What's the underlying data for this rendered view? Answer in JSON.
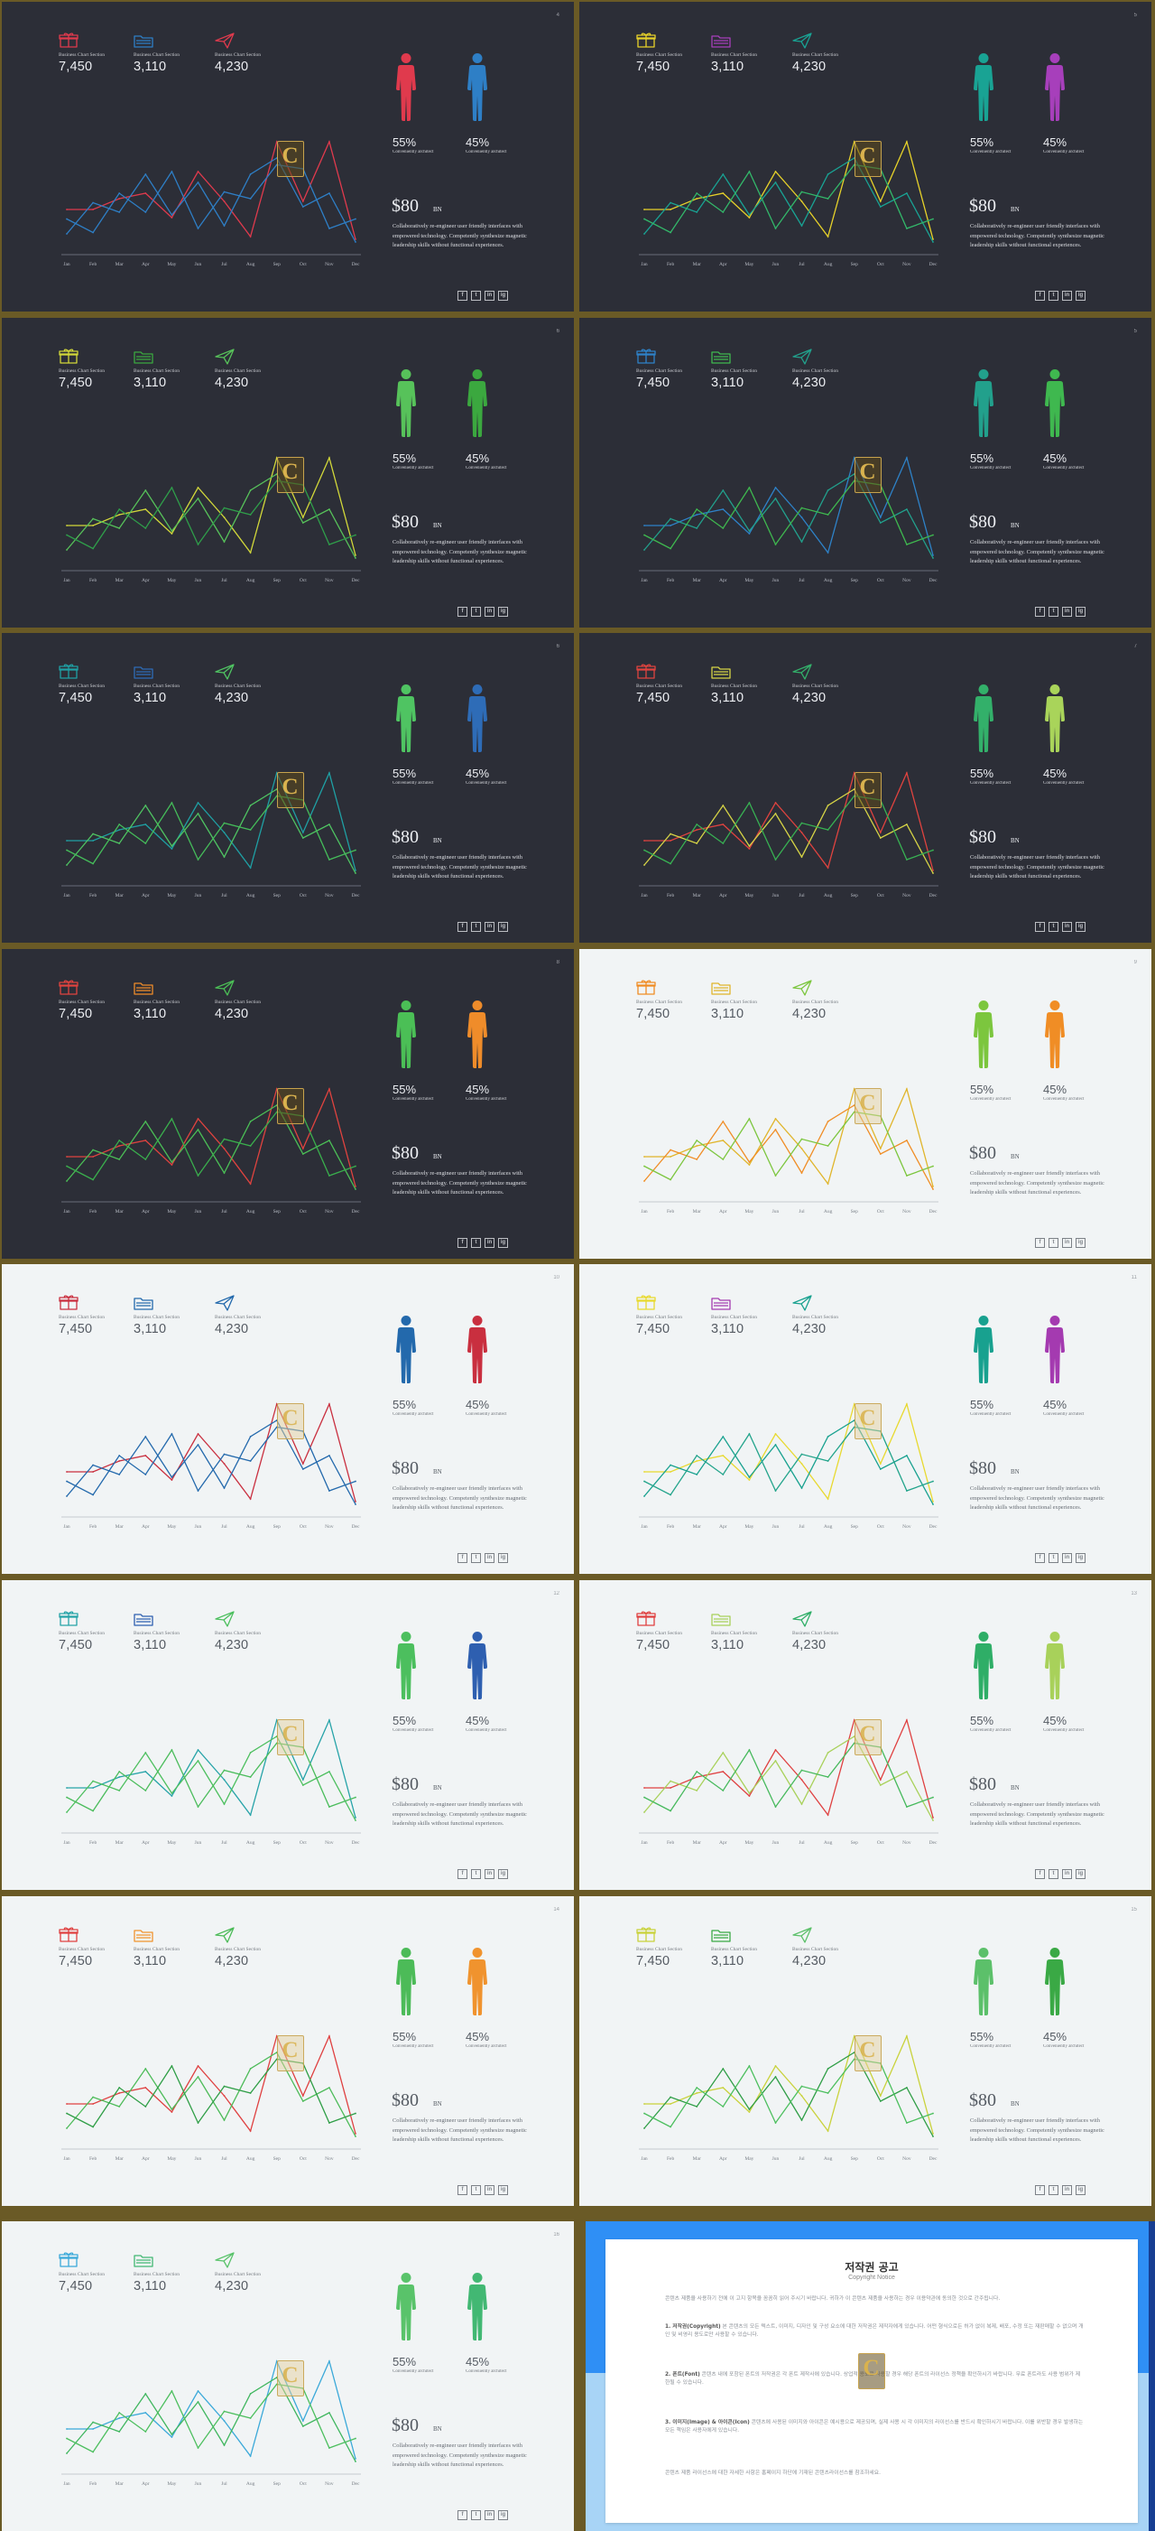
{
  "common": {
    "stat_labels": [
      "Business Chart Section",
      "Business Chart Section",
      "Business Chart Section"
    ],
    "stat_values": [
      "7,450",
      "3,110",
      "4,230"
    ],
    "stat_icons": [
      "gift-box-icon",
      "folder-icon",
      "paper-plane-icon"
    ],
    "months": [
      "Jan",
      "Feb",
      "Mar",
      "Apr",
      "May",
      "Jun",
      "Jul",
      "Aug",
      "Sep",
      "Oct",
      "Nov",
      "Dec"
    ],
    "left_percent": "55%",
    "right_percent": "45%",
    "percent_caption": "Conveniently architect",
    "price": "$80",
    "price_unit": "BN",
    "body_text": "Collaboratively re-engineer user friendly interfaces with empowered technology. Competently synthesize magnetic leadership skills without functional experiences.",
    "social_icons": [
      "facebook-icon",
      "twitter-icon",
      "linkedin-icon",
      "instagram-icon"
    ],
    "social_glyphs": [
      "f",
      "t",
      "in",
      "ig"
    ],
    "watermark_letter": "C"
  },
  "chart_data": {
    "type": "line",
    "categories": [
      "Jan",
      "Feb",
      "Mar",
      "Apr",
      "May",
      "Jun",
      "Jul",
      "Aug",
      "Sep",
      "Oct",
      "Nov",
      "Dec"
    ],
    "ylim": [
      0,
      100
    ],
    "series": [
      {
        "values": [
          32,
          32,
          40,
          44,
          26,
          60,
          38,
          12,
          82,
          38,
          82,
          10
        ]
      },
      {
        "values": [
          14,
          37,
          30,
          58,
          28,
          52,
          20,
          58,
          70,
          34,
          44,
          8
        ]
      },
      {
        "values": [
          25,
          15,
          44,
          30,
          60,
          18,
          45,
          40,
          65,
          62,
          18,
          25
        ]
      }
    ]
  },
  "slides": [
    {
      "page": "4",
      "theme": "dark",
      "colors": [
        "#e03a4d",
        "#2e7fc6",
        "#e03a4d",
        "#2e7fc6",
        "#e03a4d",
        "#2e7fc6",
        "#2e7fc6"
      ]
    },
    {
      "page": "5",
      "theme": "dark",
      "colors": [
        "#e7d22a",
        "#a73fbb",
        "#19a394",
        "#a73fbb",
        "#e7d22a",
        "#19a394",
        "#33b86a"
      ]
    },
    {
      "page": "6",
      "theme": "dark",
      "colors": [
        "#d2d83a",
        "#3ba83f",
        "#57c25a",
        "#3ba83f",
        "#d2d83a",
        "#57c25a",
        "#2f9e4a"
      ]
    },
    {
      "page": "5",
      "theme": "dark",
      "colors": [
        "#2e82c8",
        "#3fb84f",
        "#22a08c",
        "#3fb84f",
        "#2e82c8",
        "#22a08c",
        "#3fb84f"
      ]
    },
    {
      "page": "6",
      "theme": "dark",
      "colors": [
        "#1fa0a4",
        "#2e6cb7",
        "#4fc462",
        "#2e6cb7",
        "#1fa0a4",
        "#4fc462",
        "#45bd5a"
      ]
    },
    {
      "page": "7",
      "theme": "dark",
      "colors": [
        "#e0433f",
        "#d6d446",
        "#33b06a",
        "#a9d45a",
        "#e0433f",
        "#d6d446",
        "#38b153"
      ]
    },
    {
      "page": "8",
      "theme": "dark",
      "colors": [
        "#e0433f",
        "#ef8c2a",
        "#4bbf56",
        "#ef8c2a",
        "#e0433f",
        "#4bbf56",
        "#3aaf4d"
      ]
    },
    {
      "page": "9",
      "theme": "light",
      "colors": [
        "#f08d25",
        "#e0b52b",
        "#7cc63e",
        "#f08d25",
        "#e0b52b",
        "#f08d25",
        "#7cc63e"
      ]
    },
    {
      "page": "10",
      "theme": "light",
      "colors": [
        "#c92f3f",
        "#2369ac",
        "#2369ac",
        "#c92f3f",
        "#c92f3f",
        "#2369ac",
        "#2369ac"
      ]
    },
    {
      "page": "11",
      "theme": "light",
      "colors": [
        "#e8d92f",
        "#a43ab0",
        "#18a18f",
        "#a43ab0",
        "#e8d92f",
        "#18a18f",
        "#23a48b"
      ]
    },
    {
      "page": "12",
      "theme": "light",
      "colors": [
        "#26a3a8",
        "#2e5fb0",
        "#4cbf5e",
        "#2e5fb0",
        "#26a3a8",
        "#4cbf5e",
        "#4abc5b"
      ]
    },
    {
      "page": "13",
      "theme": "light",
      "colors": [
        "#df4040",
        "#a8d15a",
        "#2fae67",
        "#a8d15a",
        "#df4040",
        "#a8d15a",
        "#46b95c"
      ]
    },
    {
      "page": "14",
      "theme": "light",
      "colors": [
        "#df4040",
        "#f0932e",
        "#4cbb58",
        "#f0932e",
        "#df4040",
        "#4cbb58",
        "#2f9e46"
      ]
    },
    {
      "page": "15",
      "theme": "light",
      "colors": [
        "#c9d23b",
        "#3aa945",
        "#5cc06a",
        "#3aa945",
        "#c9d23b",
        "#2f9e46",
        "#4cbf5e"
      ]
    },
    {
      "page": "16",
      "theme": "light",
      "colors": [
        "#3ba9d9",
        "#42b873",
        "#59c36a",
        "#42b873",
        "#3ba9d9",
        "#3fb65e",
        "#4cbf5e"
      ]
    }
  ],
  "notice": {
    "title": "저작권 공고",
    "subtitle": "Copyright Notice",
    "intro": "콘텐츠 제품을 사용하기 전에 이 고지 항목을 꼼꼼히 읽어 주시기 바랍니다. 귀하가 이 콘텐츠 제품을 사용하는 경우 이용약관에 동의한 것으로 간주됩니다.",
    "p1_head": "1. 저작권(Copyright)",
    "p1_body": "본 콘텐츠의 모든 텍스트, 이미지, 디자인 및 구성 요소에 대한 저작권은 제작자에게 있습니다. 어떤 형식으로든 허가 없이 복제, 배포, 수정 또는 재판매할 수 없으며 개인 및 비영리 용도로만 사용할 수 있습니다.",
    "p2_head": "2. 폰트(Font)",
    "p2_body": "콘텐츠 내에 포함된 폰트의 저작권은 각 폰트 제작사에 있습니다. 상업적 용도로 사용할 경우 해당 폰트의 라이선스 정책을 확인하시기 바랍니다. 무료 폰트라도 사용 범위가 제한될 수 있습니다.",
    "p3_head": "3. 이미지(Image) & 아이콘(Icon)",
    "p3_body": "콘텐츠에 사용된 이미지와 아이콘은 예시용으로 제공되며, 실제 사용 시 각 이미지의 라이선스를 반드시 확인하시기 바랍니다. 이를 위반할 경우 발생하는 모든 책임은 사용자에게 있습니다.",
    "outro": "콘텐츠 제품 라이선스에 대한 자세한 사항은 홈페이지 하단에 기재된 콘텐츠라이선스를 참조하세요."
  }
}
